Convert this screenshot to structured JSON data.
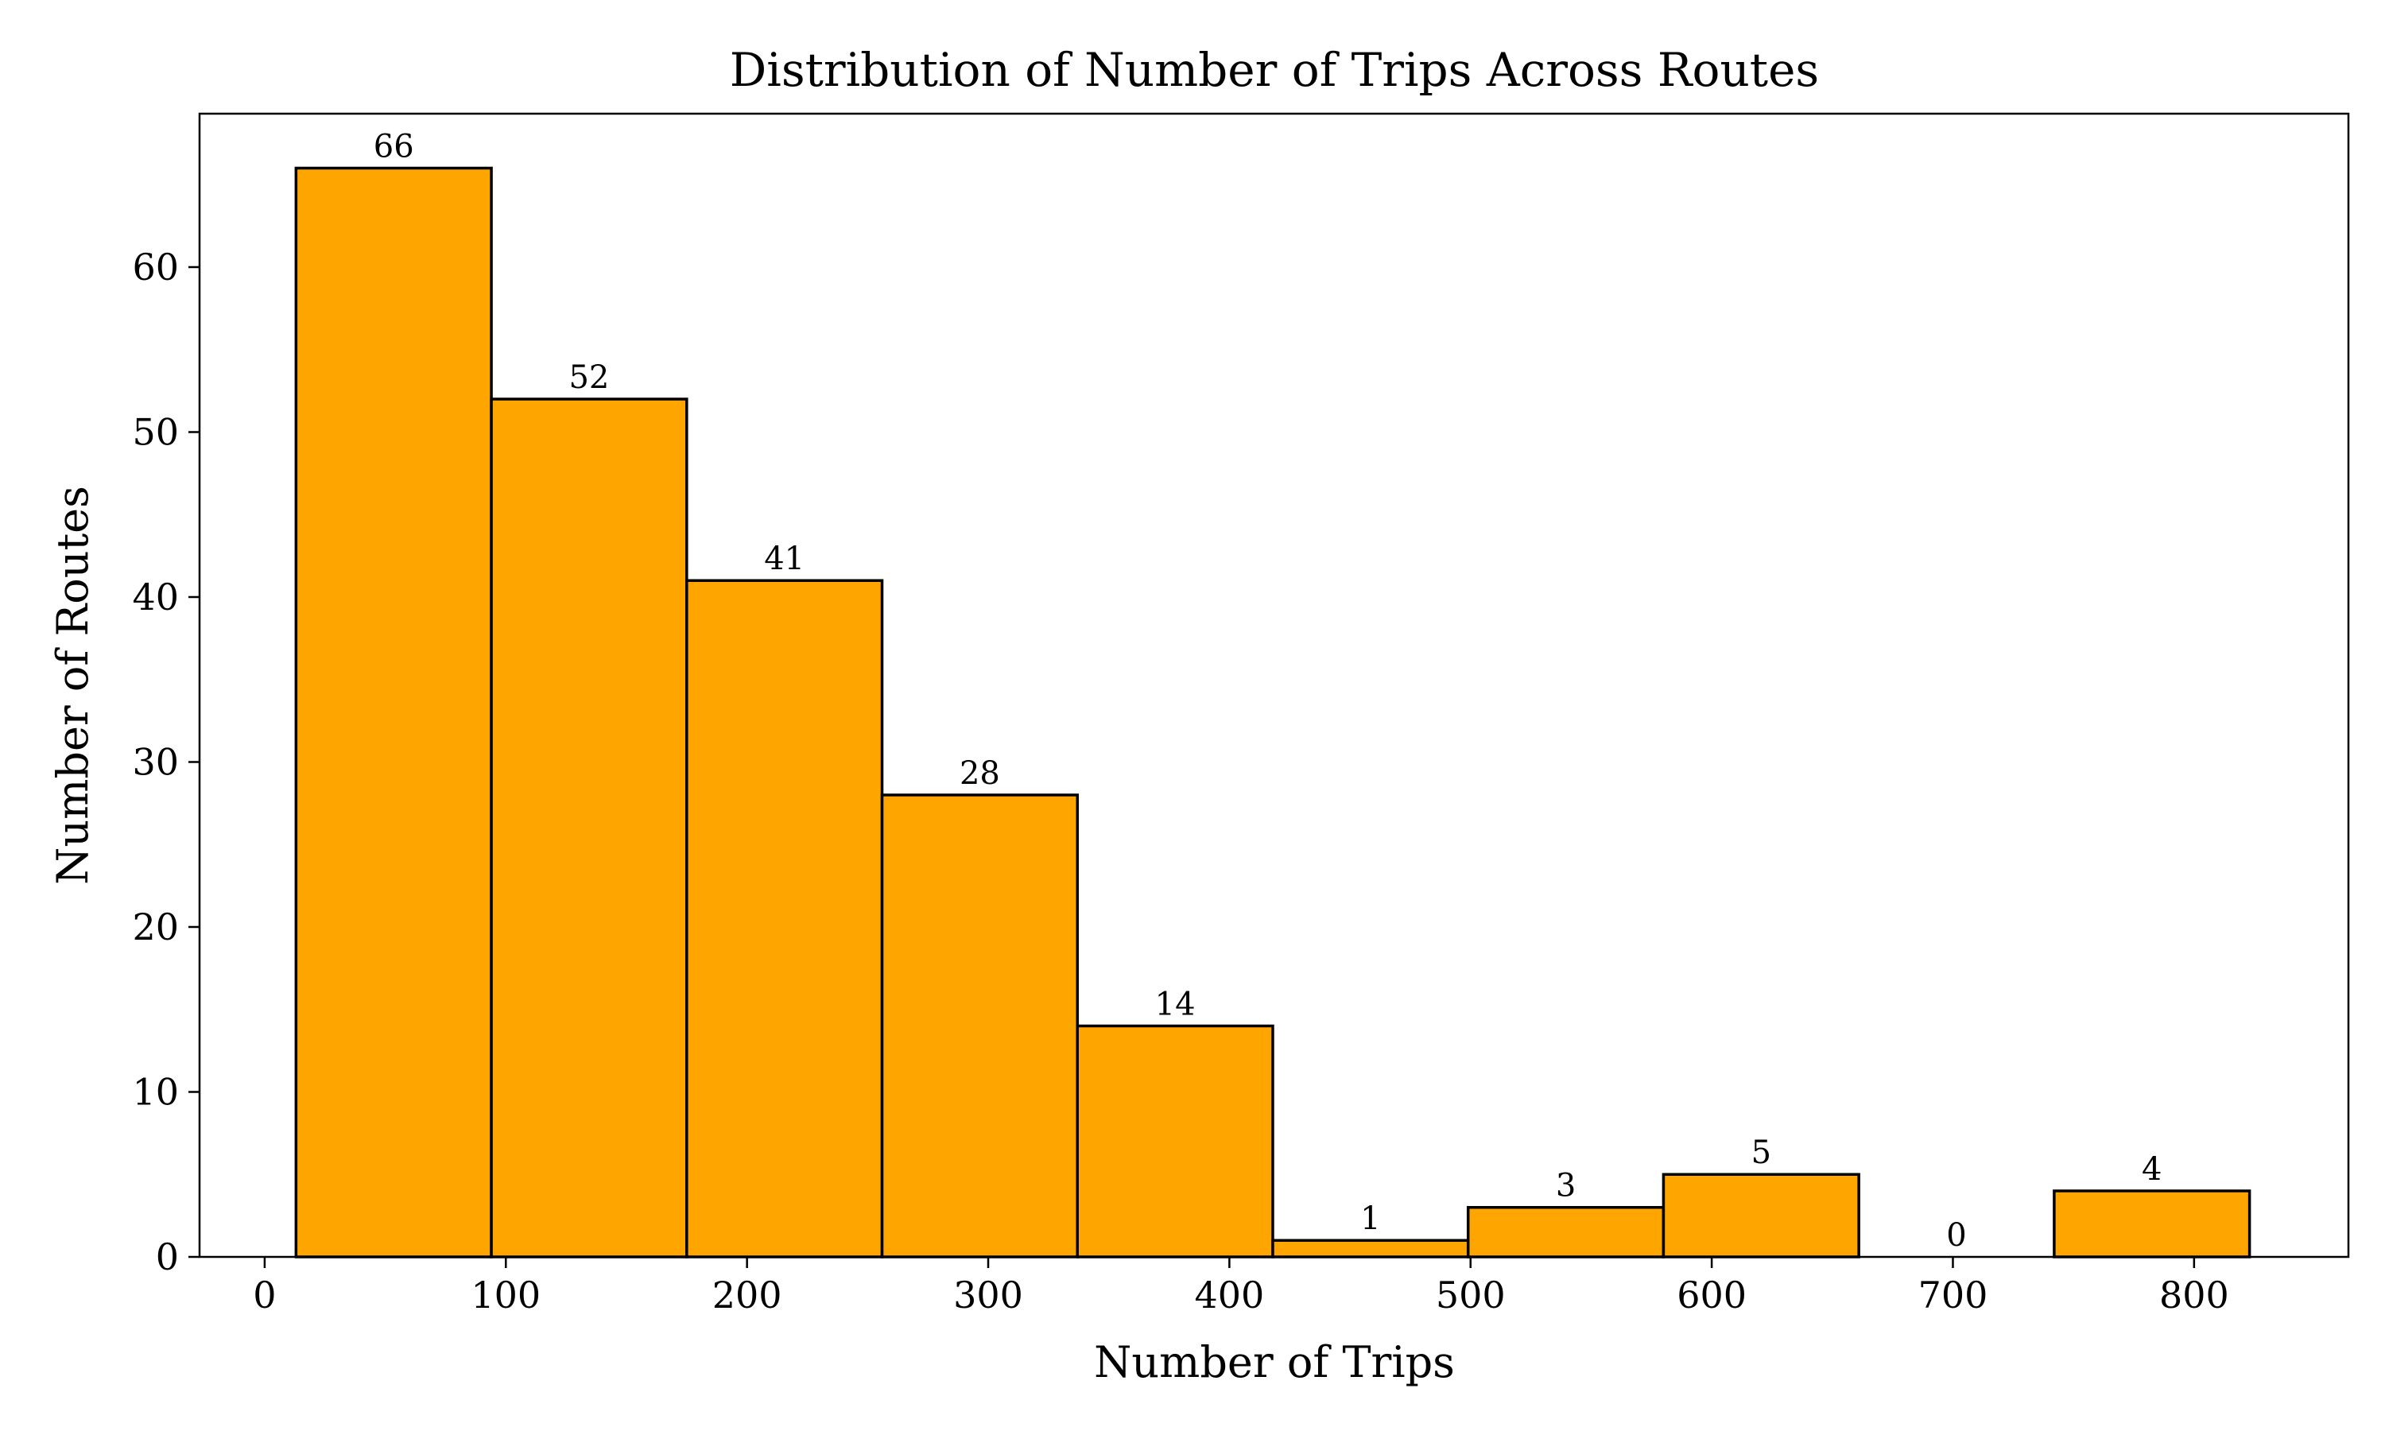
{
  "chart_data": {
    "type": "bar",
    "title": "Distribution of Number of Trips Across Routes",
    "xlabel": "Number of Trips",
    "ylabel": "Number of Routes",
    "bins": [
      {
        "start": 13,
        "end": 94,
        "count": 66
      },
      {
        "start": 94,
        "end": 175,
        "count": 52
      },
      {
        "start": 175,
        "end": 256,
        "count": 41
      },
      {
        "start": 256,
        "end": 337,
        "count": 28
      },
      {
        "start": 337,
        "end": 418,
        "count": 14
      },
      {
        "start": 418,
        "end": 499,
        "count": 1
      },
      {
        "start": 499,
        "end": 580,
        "count": 3
      },
      {
        "start": 580,
        "end": 661,
        "count": 5
      },
      {
        "start": 661,
        "end": 742,
        "count": 0
      },
      {
        "start": 742,
        "end": 823,
        "count": 4
      }
    ],
    "value_labels": [
      "66",
      "52",
      "41",
      "28",
      "14",
      "1",
      "3",
      "5",
      "0",
      "4"
    ],
    "xlim": [
      -27,
      864
    ],
    "ylim": [
      0,
      69.3
    ],
    "xticks": [
      0,
      100,
      200,
      300,
      400,
      500,
      600,
      700,
      800
    ],
    "xtick_labels": [
      "0",
      "100",
      "200",
      "300",
      "400",
      "500",
      "600",
      "700",
      "800"
    ],
    "yticks": [
      0,
      10,
      20,
      30,
      40,
      50,
      60
    ],
    "ytick_labels": [
      "0",
      "10",
      "20",
      "30",
      "40",
      "50",
      "60"
    ],
    "grid": false,
    "bar_color": "#FFA500",
    "edge_color": "#000000"
  }
}
